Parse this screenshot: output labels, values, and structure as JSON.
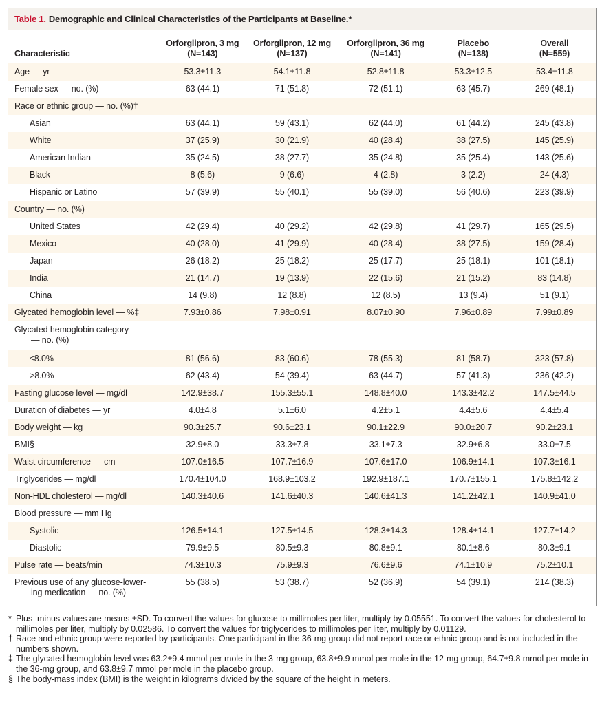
{
  "table": {
    "label": "Table 1.",
    "title": "Demographic and Clinical Characteristics of the Participants at Baseline.*",
    "columns": [
      {
        "name": "Characteristic",
        "n": ""
      },
      {
        "name": "Orforglipron, 3 mg",
        "n": "(N=143)"
      },
      {
        "name": "Orforglipron, 12 mg",
        "n": "(N=137)"
      },
      {
        "name": "Orforglipron, 36 mg",
        "n": "(N=141)"
      },
      {
        "name": "Placebo",
        "n": "(N=138)"
      },
      {
        "name": "Overall",
        "n": "(N=559)"
      }
    ],
    "rows": [
      {
        "label": "Age — yr",
        "values": [
          "53.3±11.3",
          "54.1±11.8",
          "52.8±11.8",
          "53.3±12.5",
          "53.4±11.8"
        ]
      },
      {
        "label": "Female sex — no. (%)",
        "values": [
          "63 (44.1)",
          "71 (51.8)",
          "72 (51.1)",
          "63 (45.7)",
          "269 (48.1)"
        ]
      },
      {
        "label": "Race or ethnic group — no. (%)†",
        "values": [
          "",
          "",
          "",
          "",
          ""
        ]
      },
      {
        "label": "Asian",
        "values": [
          "63 (44.1)",
          "59 (43.1)",
          "62 (44.0)",
          "61 (44.2)",
          "245 (43.8)"
        ]
      },
      {
        "label": "White",
        "values": [
          "37 (25.9)",
          "30 (21.9)",
          "40 (28.4)",
          "38 (27.5)",
          "145 (25.9)"
        ]
      },
      {
        "label": "American Indian",
        "values": [
          "35 (24.5)",
          "38 (27.7)",
          "35 (24.8)",
          "35 (25.4)",
          "143 (25.6)"
        ]
      },
      {
        "label": "Black",
        "values": [
          "8 (5.6)",
          "9 (6.6)",
          "4 (2.8)",
          "3 (2.2)",
          "24 (4.3)"
        ]
      },
      {
        "label": "Hispanic or Latino",
        "values": [
          "57 (39.9)",
          "55 (40.1)",
          "55 (39.0)",
          "56 (40.6)",
          "223 (39.9)"
        ]
      },
      {
        "label": "Country — no. (%)",
        "values": [
          "",
          "",
          "",
          "",
          ""
        ]
      },
      {
        "label": "United States",
        "values": [
          "42 (29.4)",
          "40 (29.2)",
          "42 (29.8)",
          "41 (29.7)",
          "165 (29.5)"
        ]
      },
      {
        "label": "Mexico",
        "values": [
          "40 (28.0)",
          "41 (29.9)",
          "40 (28.4)",
          "38 (27.5)",
          "159 (28.4)"
        ]
      },
      {
        "label": "Japan",
        "values": [
          "26 (18.2)",
          "25 (18.2)",
          "25 (17.7)",
          "25 (18.1)",
          "101 (18.1)"
        ]
      },
      {
        "label": "India",
        "values": [
          "21 (14.7)",
          "19 (13.9)",
          "22 (15.6)",
          "21 (15.2)",
          "83 (14.8)"
        ]
      },
      {
        "label": "China",
        "values": [
          "14 (9.8)",
          "12 (8.8)",
          "12 (8.5)",
          "13 (9.4)",
          "51 (9.1)"
        ]
      },
      {
        "label": "Glycated hemoglobin level — %‡",
        "values": [
          "7.93±0.86",
          "7.98±0.91",
          "8.07±0.90",
          "7.96±0.89",
          "7.99±0.89"
        ]
      },
      {
        "label": "Glycated hemoglobin category",
        "label2": "— no. (%)",
        "values": [
          "",
          "",
          "",
          "",
          ""
        ]
      },
      {
        "label": "≤8.0%",
        "values": [
          "81 (56.6)",
          "83 (60.6)",
          "78 (55.3)",
          "81 (58.7)",
          "323 (57.8)"
        ]
      },
      {
        "label": ">8.0%",
        "values": [
          "62 (43.4)",
          "54 (39.4)",
          "63 (44.7)",
          "57 (41.3)",
          "236 (42.2)"
        ]
      },
      {
        "label": "Fasting glucose level — mg/dl",
        "values": [
          "142.9±38.7",
          "155.3±55.1",
          "148.8±40.0",
          "143.3±42.2",
          "147.5±44.5"
        ]
      },
      {
        "label": "Duration of diabetes — yr",
        "values": [
          "4.0±4.8",
          "5.1±6.0",
          "4.2±5.1",
          "4.4±5.6",
          "4.4±5.4"
        ]
      },
      {
        "label": "Body weight — kg",
        "values": [
          "90.3±25.7",
          "90.6±23.1",
          "90.1±22.9",
          "90.0±20.7",
          "90.2±23.1"
        ]
      },
      {
        "label": "BMI§",
        "values": [
          "32.9±8.0",
          "33.3±7.8",
          "33.1±7.3",
          "32.9±6.8",
          "33.0±7.5"
        ]
      },
      {
        "label": "Waist circumference — cm",
        "values": [
          "107.0±16.5",
          "107.7±16.9",
          "107.6±17.0",
          "106.9±14.1",
          "107.3±16.1"
        ]
      },
      {
        "label": "Triglycerides — mg/dl",
        "values": [
          "170.4±104.0",
          "168.9±103.2",
          "192.9±187.1",
          "170.7±155.1",
          "175.8±142.2"
        ]
      },
      {
        "label": "Non-HDL cholesterol — mg/dl",
        "values": [
          "140.3±40.6",
          "141.6±40.3",
          "140.6±41.3",
          "141.2±42.1",
          "140.9±41.0"
        ]
      },
      {
        "label": "Blood pressure — mm Hg",
        "values": [
          "",
          "",
          "",
          "",
          ""
        ]
      },
      {
        "label": "Systolic",
        "values": [
          "126.5±14.1",
          "127.5±14.5",
          "128.3±14.3",
          "128.4±14.1",
          "127.7±14.2"
        ]
      },
      {
        "label": "Diastolic",
        "values": [
          "79.9±9.5",
          "80.5±9.3",
          "80.8±9.1",
          "80.1±8.6",
          "80.3±9.1"
        ]
      },
      {
        "label": "Pulse rate — beats/min",
        "values": [
          "74.3±10.3",
          "75.9±9.3",
          "76.6±9.6",
          "74.1±10.9",
          "75.2±10.1"
        ]
      },
      {
        "label": "Previous use of any glucose-lower-",
        "label2": "ing medication — no. (%)",
        "values": [
          "55 (38.5)",
          "53 (38.7)",
          "52 (36.9)",
          "54 (39.1)",
          "214 (38.3)"
        ]
      }
    ]
  },
  "footnotes": [
    {
      "symbol": "*",
      "text": "Plus–minus values are means ±SD. To convert the values for glucose to millimoles per liter, multiply by 0.05551. To convert the values for cholesterol to millimoles per liter, multiply by 0.02586. To convert the values for triglycerides to millimoles per liter, multiply by 0.01129."
    },
    {
      "symbol": "†",
      "text": "Race and ethnic group were reported by participants. One participant in the 36-mg group did not report race or ethnic group and is not included in the numbers shown."
    },
    {
      "symbol": "‡",
      "text": "The glycated hemoglobin level was 63.2±9.4 mmol per mole in the 3-mg group, 63.8±9.9 mmol per mole in the 12-mg group, 64.7±9.8 mmol per mole in the 36-mg group, and 63.8±9.7 mmol per mole in the placebo group."
    },
    {
      "symbol": "§",
      "text": "The body-mass index (BMI) is the weight in kilograms divided by the square of the height in meters."
    }
  ]
}
